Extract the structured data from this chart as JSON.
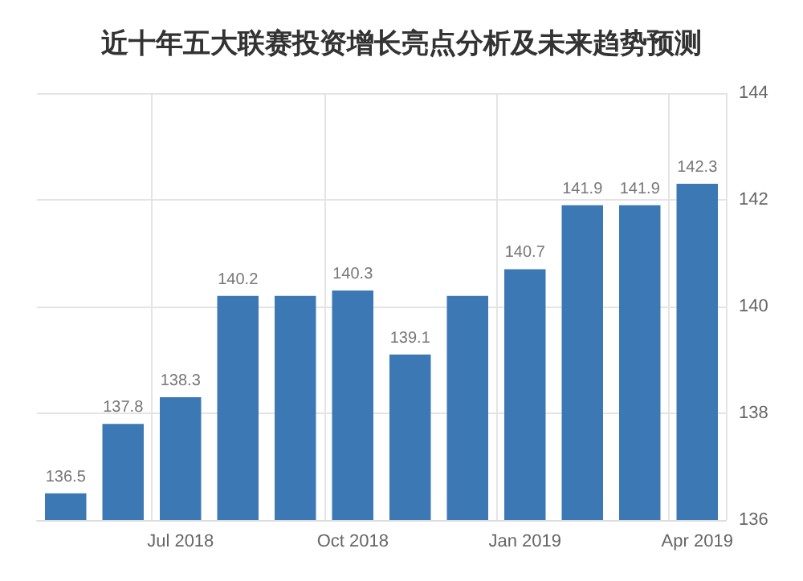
{
  "chart_data": {
    "type": "bar",
    "title": "近十年五大联赛投资增长亮点分析及未来趋势预测",
    "categories": [
      null,
      null,
      "Jul 2018",
      null,
      null,
      "Oct 2018",
      null,
      null,
      "Jan 2019",
      null,
      null,
      "Apr 2019"
    ],
    "values": [
      136.5,
      137.8,
      138.3,
      140.2,
      140.2,
      140.3,
      139.1,
      140.2,
      140.7,
      141.9,
      141.9,
      142.3
    ],
    "value_labels": [
      "136.5",
      "137.8",
      "138.3",
      "140.2",
      null,
      "140.3",
      "139.1",
      null,
      "140.7",
      "141.9",
      "141.9",
      "142.3"
    ],
    "color": "#3b78b4",
    "ylim": [
      136,
      144
    ],
    "yticks": [
      136,
      138,
      140,
      142,
      144
    ],
    "grid": true
  }
}
